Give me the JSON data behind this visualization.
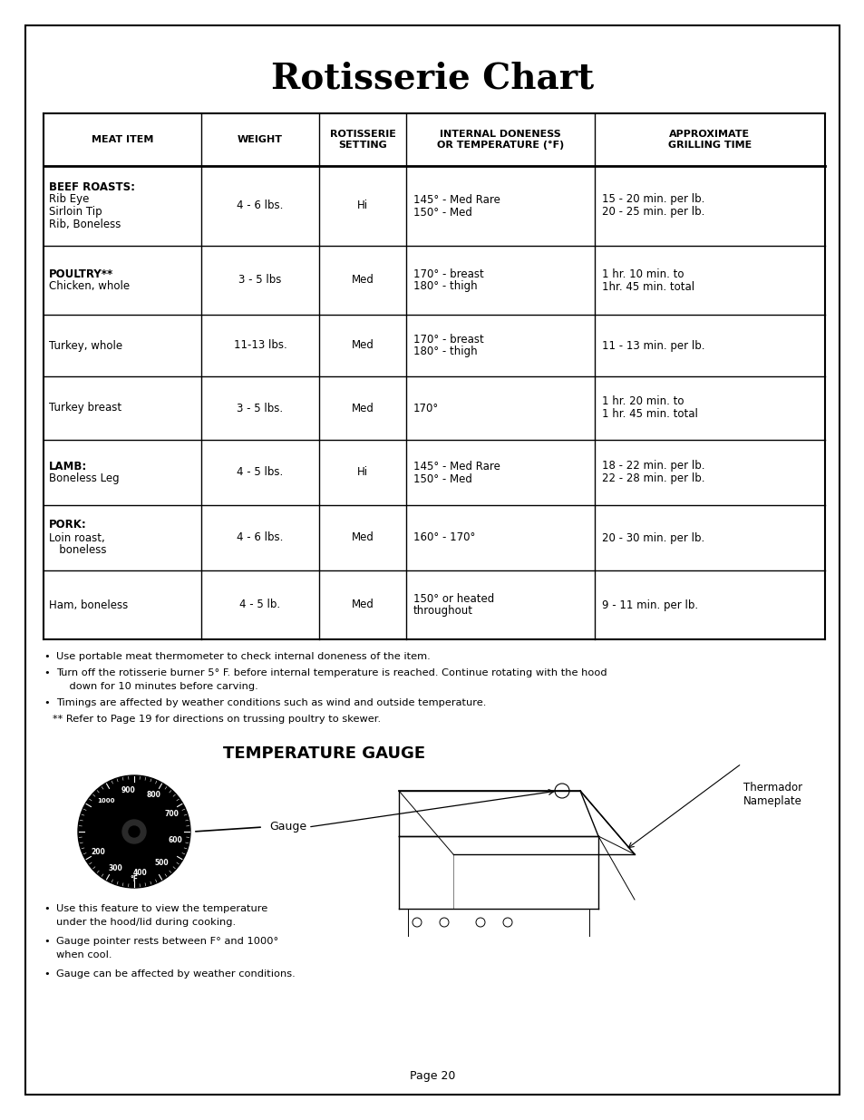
{
  "title": "Rotisserie Chart",
  "page_bg": "#ffffff",
  "table_headers": [
    "MEAT ITEM",
    "WEIGHT",
    "ROTISSERIE\nSETTING",
    "INTERNAL DONENESS\nOR TEMPERATURE (°F)",
    "APPROXIMATE\nGRILLING TIME"
  ],
  "table_rows": [
    {
      "meat": "BEEF ROASTS:\nRib Eye\nSirloin Tip\nRib, Boneless",
      "meat_bold_lines": [
        0
      ],
      "weight": "4 - 6 lbs.",
      "setting": "Hi",
      "doneness": "145° - Med Rare\n150° - Med",
      "time": "15 - 20 min. per lb.\n20 - 25 min. per lb."
    },
    {
      "meat": "POULTRY**\nChicken, whole",
      "meat_bold_lines": [
        0
      ],
      "weight": "3 - 5 lbs",
      "setting": "Med",
      "doneness": "170° - breast\n180° - thigh",
      "time": "1 hr. 10 min. to\n1hr. 45 min. total"
    },
    {
      "meat": "Turkey, whole",
      "meat_bold_lines": [],
      "weight": "11-13 lbs.",
      "setting": "Med",
      "doneness": "170° - breast\n180° - thigh",
      "time": "11 - 13 min. per lb."
    },
    {
      "meat": "Turkey breast",
      "meat_bold_lines": [],
      "weight": "3 - 5 lbs.",
      "setting": "Med",
      "doneness": "170°",
      "time": "1 hr. 20 min. to\n1 hr. 45 min. total"
    },
    {
      "meat": "LAMB:\nBoneless Leg",
      "meat_bold_lines": [
        0
      ],
      "weight": "4 - 5 lbs.",
      "setting": "Hi",
      "doneness": "145° - Med Rare\n150° - Med",
      "time": "18 - 22 min. per lb.\n22 - 28 min. per lb."
    },
    {
      "meat": "PORK:\nLoin roast,\n   boneless",
      "meat_bold_lines": [
        0
      ],
      "weight": "4 - 6 lbs.",
      "setting": "Med",
      "doneness": "160° - 170°",
      "time": "20 - 30 min. per lb."
    },
    {
      "meat": "Ham, boneless",
      "meat_bold_lines": [],
      "weight": "4 - 5 lb.",
      "setting": "Med",
      "doneness": "150° or heated\nthroughout",
      "time": "9 - 11 min. per lb."
    }
  ],
  "bullet_notes": [
    "Use portable meat thermometer to check internal doneness of the item.",
    "Turn off the rotisserie burner 5° F. before internal temperature is reached. Continue rotating with the hood\n    down for 10 minutes before carving.",
    "Timings are affected by weather conditions such as wind and outside temperature.",
    "** Refer to Page 19 for directions on trussing poultry to skewer."
  ],
  "temp_gauge_title": "TEMPERATURE GAUGE",
  "gauge_label": "Gauge",
  "nameplate_label": "Thermador\nNameplate",
  "bottom_bullets": [
    "Use this feature to view the temperature\nunder the hood/lid during cooking.",
    "Gauge pointer rests between F° and 1000°\nwhen cool.",
    "Gauge can be affected by weather conditions."
  ],
  "page_number": "Page 20",
  "gauge_numbers": [
    [
      "500",
      312
    ],
    [
      "600",
      348
    ],
    [
      "700",
      25
    ],
    [
      "800",
      62
    ],
    [
      "900",
      98
    ],
    [
      "1000",
      133
    ],
    [
      "400",
      278
    ],
    [
      "300",
      243
    ],
    [
      "200",
      210
    ]
  ]
}
